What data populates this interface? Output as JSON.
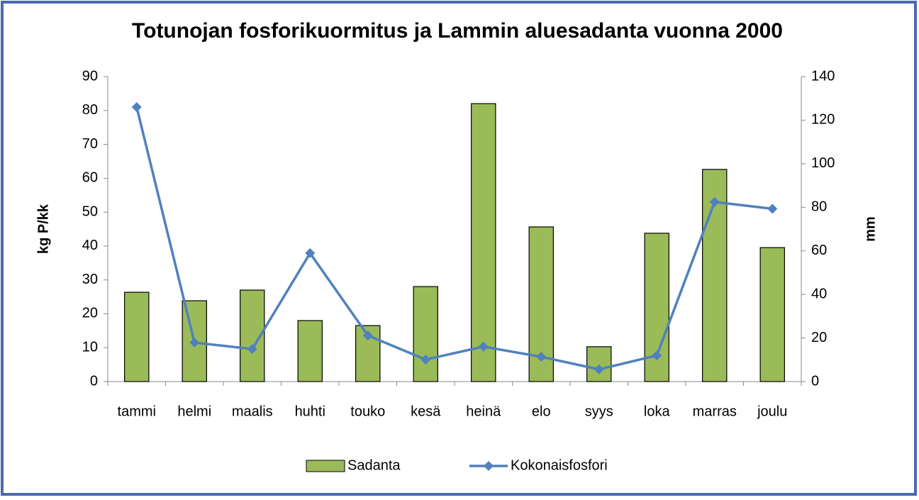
{
  "chart_data": {
    "type": "bar_line",
    "title": "Totunojan fosforikuormitus ja Lammin aluesadanta vuonna 2000",
    "ylabel": "kg P/kk",
    "y2label": "mm",
    "categories": [
      "tammi",
      "helmi",
      "maalis",
      "huhti",
      "touko",
      "kesä",
      "heinä",
      "elo",
      "syys",
      "loka",
      "marras",
      "joulu"
    ],
    "series": [
      {
        "name": "Sadanta",
        "type": "bar",
        "axis": "y2",
        "color": "#9bbb59",
        "values": [
          41.0,
          37.1,
          42.0,
          28.0,
          25.7,
          43.6,
          127.6,
          71.0,
          16.0,
          68.1,
          97.4,
          61.5
        ]
      },
      {
        "name": "Kokonaisfosfori",
        "type": "line",
        "axis": "y",
        "color": "#4f81bd",
        "values": [
          81,
          11.5,
          9.6,
          37.9,
          13.6,
          6.5,
          10.3,
          7.3,
          3.6,
          7.7,
          53,
          51
        ]
      }
    ],
    "ylim": [
      0,
      90
    ],
    "yticks": [
      0,
      10,
      20,
      30,
      40,
      50,
      60,
      70,
      80,
      90
    ],
    "y2lim": [
      0,
      140
    ],
    "y2ticks": [
      0,
      20,
      40,
      60,
      80,
      100,
      120,
      140
    ],
    "legend": "bottom"
  }
}
